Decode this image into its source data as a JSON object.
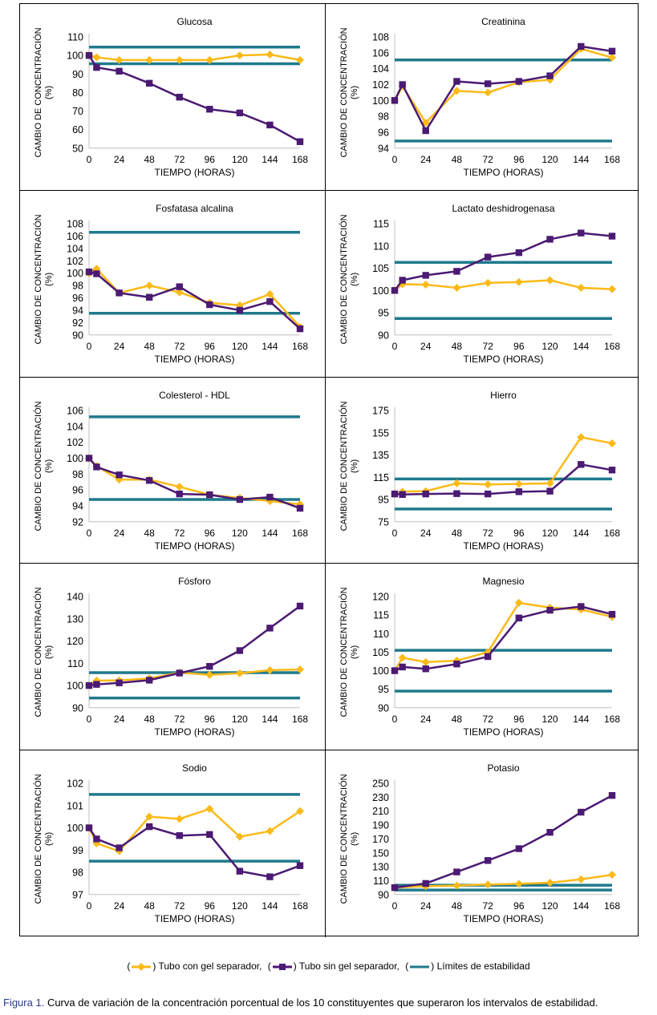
{
  "colors": {
    "gel": "#FBBA18",
    "nogel": "#4B1A73",
    "limits": "#1F7A8C"
  },
  "legend": {
    "gel_label": "Tubo con gel separador,",
    "nogel_label": "Tubo sin gel separador,",
    "limits_label": "Límites de estabilidad",
    "open_paren": "(",
    "close_paren": ")"
  },
  "caption": {
    "label": "Figura 1.",
    "text": "Curva de variación de la concentración porcentual de los 10 constituyentes que superaron los intervalos de estabilidad."
  },
  "chart_data": [
    {
      "type": "line",
      "title": "Glucosa",
      "xlabel": "TIEMPO (HORAS)",
      "ylabel": "CAMBIO DE CONCENTRACIÓN (%)",
      "x_ticks": [
        0,
        24,
        48,
        72,
        96,
        120,
        144,
        168
      ],
      "y_ticks": [
        50,
        60,
        70,
        80,
        90,
        100,
        110
      ],
      "ylim": [
        50,
        110
      ],
      "x": [
        0,
        6,
        24,
        48,
        72,
        96,
        120,
        144,
        168
      ],
      "series": [
        {
          "key": "gel",
          "marker": "diamond",
          "values": [
            100,
            99,
            97.5,
            97.5,
            97.5,
            97.5,
            100,
            100.5,
            97.5
          ]
        },
        {
          "key": "nogel",
          "marker": "square",
          "values": [
            100,
            93.5,
            91.5,
            85,
            77.5,
            71,
            69,
            62.5,
            53.5
          ]
        }
      ],
      "limits": [
        104.5,
        95.5
      ]
    },
    {
      "type": "line",
      "title": "Creatinina",
      "xlabel": "TIEMPO (HORAS)",
      "ylabel": "CAMBIO DE CONCENTRACIÓN (%)",
      "x_ticks": [
        0,
        24,
        48,
        72,
        96,
        120,
        144,
        168
      ],
      "y_ticks": [
        94,
        96,
        98,
        100,
        102,
        104,
        106,
        108
      ],
      "ylim": [
        94,
        108
      ],
      "x": [
        0,
        6,
        24,
        48,
        72,
        96,
        120,
        144,
        168
      ],
      "series": [
        {
          "key": "gel",
          "marker": "diamond",
          "values": [
            100,
            101.8,
            97.2,
            101.2,
            101.0,
            102.3,
            102.6,
            106.5,
            105.4
          ]
        },
        {
          "key": "nogel",
          "marker": "square",
          "values": [
            100,
            102.0,
            96.2,
            102.4,
            102.1,
            102.4,
            103.1,
            106.8,
            106.2
          ]
        }
      ],
      "limits": [
        105.1,
        94.9
      ]
    },
    {
      "type": "line",
      "title": "Fosfatasa alcalina",
      "xlabel": "TIEMPO (HORAS)",
      "ylabel": "CAMBIO DE CONCENTRACIÓN (%)",
      "x_ticks": [
        0,
        24,
        48,
        72,
        96,
        120,
        144,
        168
      ],
      "y_ticks": [
        90,
        92,
        94,
        96,
        98,
        100,
        102,
        104,
        106,
        108
      ],
      "ylim": [
        90,
        108
      ],
      "x": [
        0,
        6,
        24,
        48,
        72,
        96,
        120,
        144,
        168
      ],
      "series": [
        {
          "key": "gel",
          "marker": "diamond",
          "values": [
            100,
            100.7,
            96.8,
            98.0,
            96.9,
            95.2,
            94.8,
            96.6,
            91.3
          ]
        },
        {
          "key": "nogel",
          "marker": "square",
          "values": [
            100.2,
            99.9,
            96.8,
            96.1,
            97.8,
            94.9,
            94.0,
            95.4,
            91.0
          ]
        }
      ],
      "limits": [
        106.6,
        93.5
      ]
    },
    {
      "type": "line",
      "title": "Lactato deshidrogenasa",
      "xlabel": "TIEMPO (HORAS)",
      "ylabel": "CAMBIO DE CONCENTRACIÓN (%)",
      "x_ticks": [
        0,
        24,
        48,
        72,
        96,
        120,
        144,
        168
      ],
      "y_ticks": [
        90,
        95,
        100,
        105,
        110,
        115
      ],
      "ylim": [
        90,
        115
      ],
      "x": [
        0,
        6,
        24,
        48,
        72,
        96,
        120,
        144,
        168
      ],
      "series": [
        {
          "key": "gel",
          "marker": "diamond",
          "values": [
            100,
            101.4,
            101.3,
            100.6,
            101.7,
            101.9,
            102.3,
            100.6,
            100.3
          ]
        },
        {
          "key": "nogel",
          "marker": "square",
          "values": [
            100,
            102.3,
            103.4,
            104.3,
            107.5,
            108.5,
            111.5,
            112.9,
            112.2
          ]
        }
      ],
      "limits": [
        106.3,
        93.7
      ]
    },
    {
      "type": "line",
      "title": "Colesterol   - HDL",
      "xlabel": "TIEMPO (HORAS)",
      "ylabel": "CAMBIO DE CONCENTRACIÓN (%)",
      "x_ticks": [
        0,
        24,
        48,
        72,
        96,
        120,
        144,
        168
      ],
      "y_ticks": [
        92,
        94,
        96,
        98,
        100,
        102,
        104,
        106
      ],
      "ylim": [
        92,
        106
      ],
      "x": [
        0,
        6,
        24,
        48,
        72,
        96,
        120,
        144,
        168
      ],
      "series": [
        {
          "key": "gel",
          "marker": "diamond",
          "values": [
            100,
            99.0,
            97.3,
            97.3,
            96.4,
            95.4,
            95.0,
            94.6,
            94.2
          ]
        },
        {
          "key": "nogel",
          "marker": "square",
          "values": [
            100,
            98.9,
            97.9,
            97.2,
            95.5,
            95.4,
            94.8,
            95.1,
            93.7
          ]
        }
      ],
      "limits": [
        105.2,
        94.8
      ]
    },
    {
      "type": "line",
      "title": "Hierro",
      "xlabel": "TIEMPO (HORAS)",
      "ylabel": "CAMBIO DE CONCENTRACIÓN (%)",
      "x_ticks": [
        0,
        24,
        48,
        72,
        96,
        120,
        144,
        168
      ],
      "y_ticks": [
        75,
        95,
        115,
        135,
        155,
        175
      ],
      "ylim": [
        75,
        175
      ],
      "x": [
        0,
        6,
        24,
        48,
        72,
        96,
        120,
        144,
        168
      ],
      "series": [
        {
          "key": "gel",
          "marker": "diamond",
          "values": [
            100,
            102,
            102.5,
            109.5,
            108.5,
            109.0,
            109.5,
            151,
            145.5
          ]
        },
        {
          "key": "nogel",
          "marker": "square",
          "values": [
            100,
            99.5,
            100,
            100.3,
            100,
            102,
            102.5,
            126.5,
            121.5
          ]
        }
      ],
      "limits": [
        113.5,
        86.5
      ]
    },
    {
      "type": "line",
      "title": "Fósforo",
      "xlabel": "TIEMPO (HORAS)",
      "ylabel": "CAMBIO DE CONCENTRACIÓN (%)",
      "x_ticks": [
        0,
        24,
        48,
        72,
        96,
        120,
        144,
        168
      ],
      "y_ticks": [
        90,
        100,
        110,
        120,
        130,
        140
      ],
      "ylim": [
        90,
        140
      ],
      "x": [
        0,
        6,
        24,
        48,
        72,
        96,
        120,
        144,
        168
      ],
      "series": [
        {
          "key": "gel",
          "marker": "diamond",
          "values": [
            100,
            102.2,
            102.3,
            103.2,
            105.8,
            104.8,
            105.5,
            106.9,
            107.2
          ]
        },
        {
          "key": "nogel",
          "marker": "square",
          "values": [
            100,
            100.5,
            101.2,
            102.4,
            105.6,
            108.6,
            115.7,
            125.8,
            135.7
          ]
        }
      ],
      "limits": [
        105.8,
        94.4
      ]
    },
    {
      "type": "line",
      "title": "Magnesio",
      "xlabel": "TIEMPO (HORAS)",
      "ylabel": "CAMBIO DE CONCENTRACIÓN (%)",
      "x_ticks": [
        0,
        24,
        48,
        72,
        96,
        120,
        144,
        168
      ],
      "y_ticks": [
        90,
        95,
        100,
        105,
        110,
        115,
        120
      ],
      "ylim": [
        90,
        120
      ],
      "x": [
        0,
        6,
        24,
        48,
        72,
        96,
        120,
        144,
        168
      ],
      "series": [
        {
          "key": "gel",
          "marker": "diamond",
          "values": [
            100,
            103.5,
            102.3,
            102.7,
            105.0,
            118.3,
            117.0,
            116.5,
            114.5
          ]
        },
        {
          "key": "nogel",
          "marker": "square",
          "values": [
            100,
            101.0,
            100.5,
            101.8,
            103.8,
            114.2,
            116.3,
            117.3,
            115.2
          ]
        }
      ],
      "limits": [
        105.5,
        94.5
      ]
    },
    {
      "type": "line",
      "title": "Sodio",
      "xlabel": "TIEMPO (HORAS)",
      "ylabel": "CAMBIO DE CONCENTRACIÓN (%)",
      "x_ticks": [
        0,
        24,
        48,
        72,
        96,
        120,
        144,
        168
      ],
      "y_ticks": [
        97,
        98,
        99,
        100,
        101,
        102
      ],
      "ylim": [
        97,
        102
      ],
      "x": [
        0,
        6,
        24,
        48,
        72,
        96,
        120,
        144,
        168
      ],
      "series": [
        {
          "key": "gel",
          "marker": "diamond",
          "values": [
            100,
            99.3,
            98.95,
            100.5,
            100.4,
            100.85,
            99.6,
            99.85,
            100.75
          ]
        },
        {
          "key": "nogel",
          "marker": "square",
          "values": [
            100,
            99.5,
            99.1,
            100.05,
            99.65,
            99.7,
            98.05,
            97.8,
            98.3
          ]
        }
      ],
      "limits": [
        101.5,
        98.5
      ]
    },
    {
      "type": "line",
      "title": "Potasio",
      "xlabel": "TIEMPO (HORAS)",
      "ylabel": "CAMBIO DE CONCENTRACIÓN (%)",
      "x_ticks": [
        0,
        24,
        48,
        72,
        96,
        120,
        144,
        168
      ],
      "y_ticks": [
        90,
        110,
        130,
        150,
        170,
        190,
        210,
        230,
        250
      ],
      "ylim": [
        90,
        250
      ],
      "x": [
        0,
        24,
        48,
        72,
        96,
        120,
        144,
        168
      ],
      "series": [
        {
          "key": "gel",
          "marker": "diamond",
          "values": [
            100,
            102,
            103,
            104.5,
            105.5,
            107,
            112,
            118.5
          ]
        },
        {
          "key": "nogel",
          "marker": "square",
          "values": [
            100,
            106,
            122.5,
            139,
            156,
            179.5,
            208.5,
            232.5
          ]
        }
      ],
      "limits": [
        103.5,
        96.5
      ]
    }
  ]
}
